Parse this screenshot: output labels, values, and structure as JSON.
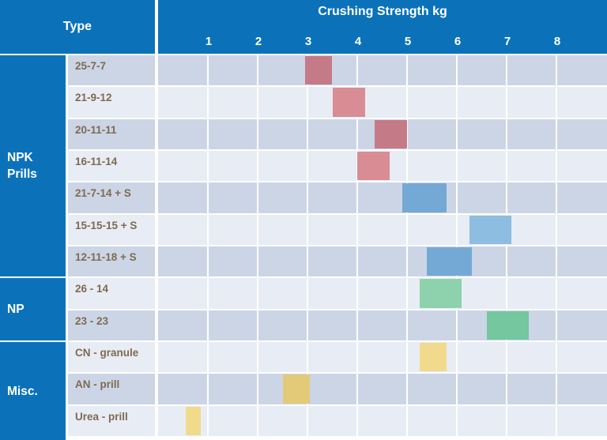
{
  "header": {
    "type_column_label": "Type",
    "title": "Crushing Strength kg"
  },
  "colors": {
    "header_blue": "#0b72ba",
    "row_background_dark": "#ccd5e6",
    "row_background_light": "#e8ecf4",
    "row_label_text": "#7d6b51",
    "gridline": "#ffffff",
    "bar_rose_dark": "#c57a88",
    "bar_rose_light": "#d98c94",
    "bar_blue_dark": "#74a9d5",
    "bar_blue_light": "#8dbde1",
    "bar_green_light": "#8dd2ac",
    "bar_green_dark": "#74c79e",
    "bar_yellow_light": "#f2da8c",
    "bar_yellow_dark": "#e2ca79"
  },
  "chart_data": {
    "type": "bar",
    "subtype": "horizontal floating range bars",
    "title": "Crushing Strength kg",
    "xlabel": "Crushing Strength kg",
    "ylabel": "Type",
    "xlim": [
      0,
      9
    ],
    "x_ticks": [
      1,
      2,
      3,
      4,
      5,
      6,
      7,
      8
    ],
    "grid": true,
    "legend": false,
    "groups": [
      {
        "label": "NPK Prills",
        "row_count": 7
      },
      {
        "label": "NP",
        "row_count": 2
      },
      {
        "label": "Misc.",
        "row_count": 3
      }
    ],
    "rows": [
      {
        "group": "NPK Prills",
        "label": "25-7-7",
        "range_kg": [
          2.95,
          3.5
        ],
        "bar_color": "#c57a88"
      },
      {
        "group": "NPK Prills",
        "label": "21-9-12",
        "range_kg": [
          3.5,
          4.15
        ],
        "bar_color": "#d98c94"
      },
      {
        "group": "NPK Prills",
        "label": "20-11-11",
        "range_kg": [
          4.35,
          5.0
        ],
        "bar_color": "#c57a88"
      },
      {
        "group": "NPK Prills",
        "label": "16-11-14",
        "range_kg": [
          4.0,
          4.65
        ],
        "bar_color": "#d98c94"
      },
      {
        "group": "NPK Prills",
        "label": "21-7-14 + S",
        "range_kg": [
          4.9,
          5.8
        ],
        "bar_color": "#74a9d5"
      },
      {
        "group": "NPK Prills",
        "label": "15-15-15 + S",
        "range_kg": [
          6.25,
          7.1
        ],
        "bar_color": "#8dbde1"
      },
      {
        "group": "NPK Prills",
        "label": "12-11-18 + S",
        "range_kg": [
          5.4,
          6.3
        ],
        "bar_color": "#74a9d5"
      },
      {
        "group": "NP",
        "label": "26 - 14",
        "range_kg": [
          5.25,
          6.1
        ],
        "bar_color": "#8dd2ac"
      },
      {
        "group": "NP",
        "label": "23 - 23",
        "range_kg": [
          6.6,
          7.45
        ],
        "bar_color": "#74c79e"
      },
      {
        "group": "Misc.",
        "label": "CN - granule",
        "range_kg": [
          5.25,
          5.8
        ],
        "bar_color": "#f2da8c"
      },
      {
        "group": "Misc.",
        "label": "AN - prill",
        "range_kg": [
          2.5,
          3.05
        ],
        "bar_color": "#e2ca79"
      },
      {
        "group": "Misc.",
        "label": "Urea - prill",
        "range_kg": [
          0.55,
          0.85
        ],
        "bar_color": "#f2da8c"
      }
    ]
  }
}
